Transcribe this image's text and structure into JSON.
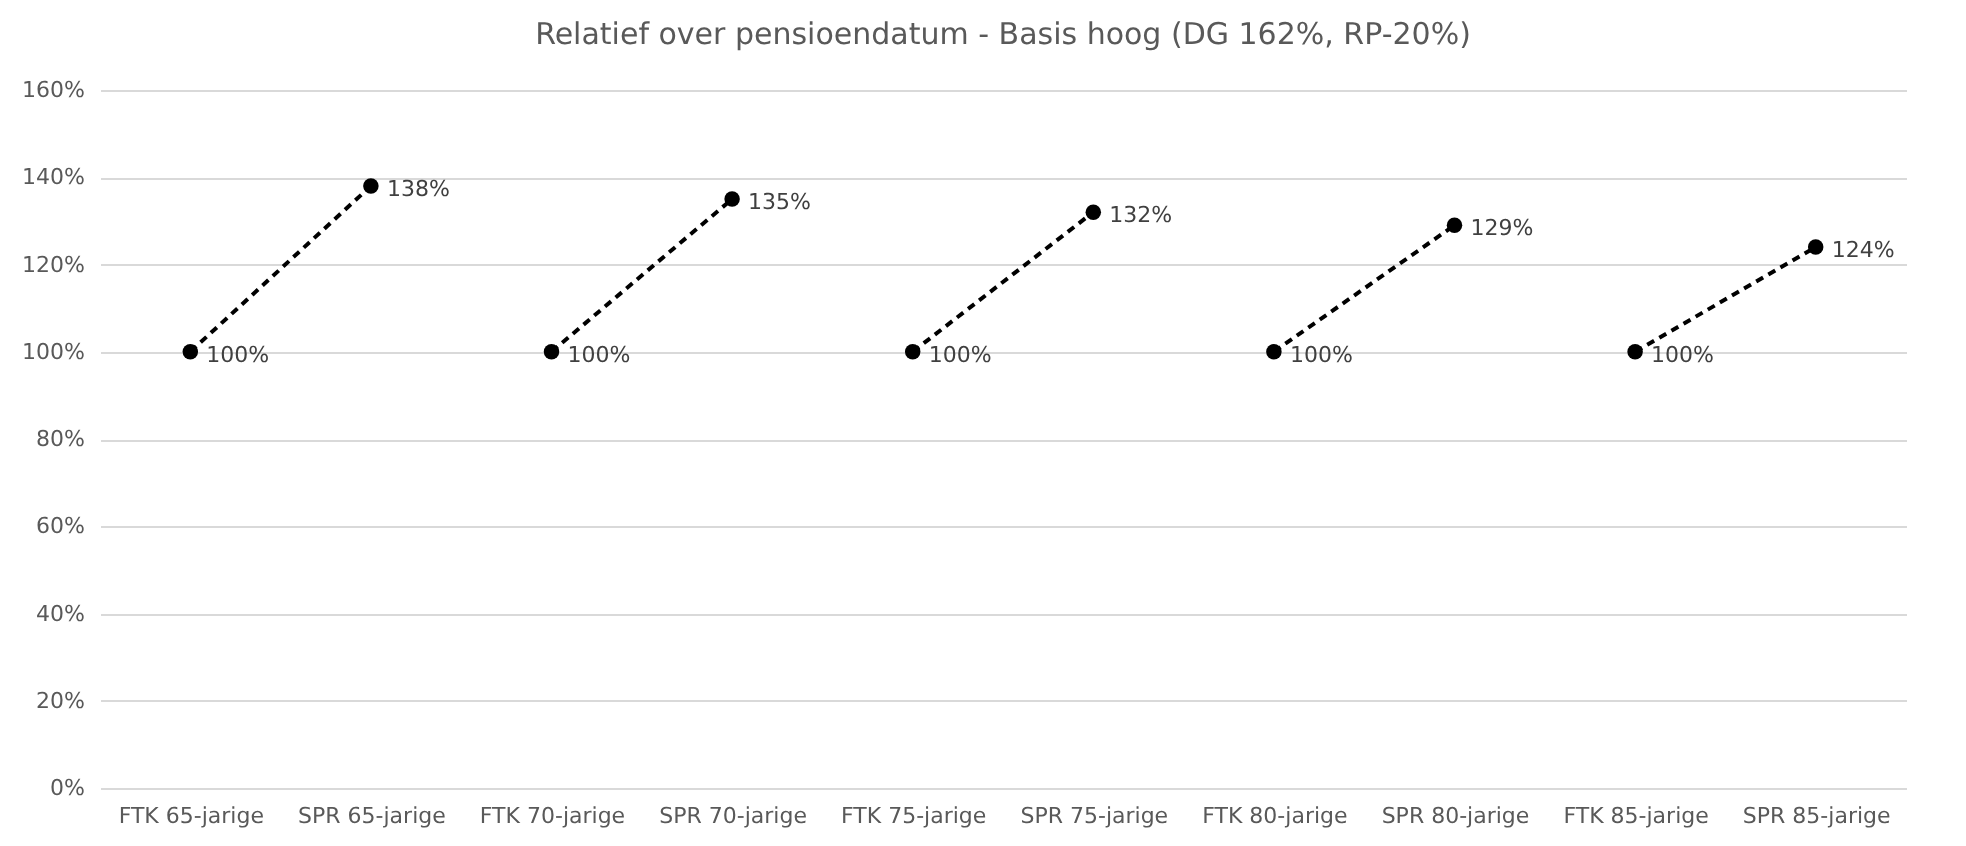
{
  "chart_data": {
    "type": "line",
    "title": "Relatief over pensioendatum - Basis hoog (DG 162%, RP-20%)",
    "categories": [
      "FTK 65-jarige",
      "SPR 65-jarige",
      "FTK 70-jarige",
      "SPR 70-jarige",
      "FTK 75-jarige",
      "SPR 75-jarige",
      "FTK 80-jarige",
      "SPR 80-jarige",
      "FTK 85-jarige",
      "SPR 85-jarige"
    ],
    "series": [
      {
        "color": "#000000",
        "values": [
          100,
          138,
          null,
          null,
          null,
          null,
          null,
          null,
          null,
          null
        ],
        "value_labels": [
          "100%",
          "138%",
          null,
          null,
          null,
          null,
          null,
          null,
          null,
          null
        ]
      },
      {
        "color": "#000000",
        "values": [
          null,
          null,
          100,
          135,
          null,
          null,
          null,
          null,
          null,
          null
        ],
        "value_labels": [
          null,
          null,
          "100%",
          "135%",
          null,
          null,
          null,
          null,
          null,
          null
        ]
      },
      {
        "color": "#000000",
        "values": [
          null,
          null,
          null,
          null,
          100,
          132,
          null,
          null,
          null,
          null
        ],
        "value_labels": [
          null,
          null,
          null,
          null,
          "100%",
          "132%",
          null,
          null,
          null,
          null
        ]
      },
      {
        "color": "#000000",
        "values": [
          null,
          null,
          null,
          null,
          null,
          null,
          100,
          129,
          null,
          null
        ],
        "value_labels": [
          null,
          null,
          null,
          null,
          null,
          null,
          "100%",
          "129%",
          null,
          null
        ]
      },
      {
        "color": "#000000",
        "values": [
          null,
          null,
          null,
          null,
          null,
          null,
          null,
          null,
          100,
          124
        ],
        "value_labels": [
          null,
          null,
          null,
          null,
          null,
          null,
          null,
          null,
          "100%",
          "124%"
        ]
      }
    ],
    "ylim": [
      0,
      160
    ],
    "yticks": [
      {
        "value": 0,
        "label": "0%"
      },
      {
        "value": 20,
        "label": "20%"
      },
      {
        "value": 40,
        "label": "40%"
      },
      {
        "value": 60,
        "label": "60%"
      },
      {
        "value": 80,
        "label": "80%"
      },
      {
        "value": 100,
        "label": "100%"
      },
      {
        "value": 120,
        "label": "120%"
      },
      {
        "value": 140,
        "label": "140%"
      },
      {
        "value": 160,
        "label": "160%"
      }
    ],
    "grid": "y",
    "marker": "circle",
    "line_style": "dashed"
  }
}
